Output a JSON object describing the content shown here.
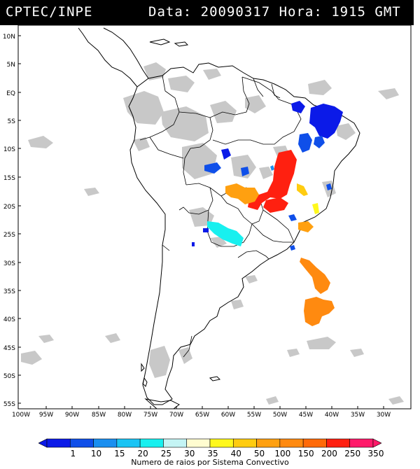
{
  "header": {
    "agency": "CPTEC/INPE",
    "datetime": "Data: 20090317 Hora: 1915 GMT"
  },
  "map": {
    "lat_labels": [
      "10N",
      "5N",
      "EQ",
      "5S",
      "10S",
      "15S",
      "20S",
      "25S",
      "30S",
      "35S",
      "40S",
      "45S",
      "50S",
      "55S"
    ],
    "lon_labels": [
      "100W",
      "95W",
      "90W",
      "85W",
      "80W",
      "75W",
      "70W",
      "65W",
      "60W",
      "55W",
      "50W",
      "45W",
      "40W",
      "35W",
      "30W"
    ],
    "colors": {
      "land_fill": "#ffffff",
      "border": "#000000",
      "cloud": "#c8c8c8"
    }
  },
  "legend": {
    "labels": [
      "1",
      "10",
      "15",
      "20",
      "25",
      "30",
      "35",
      "40",
      "50",
      "100",
      "150",
      "200",
      "250",
      "350"
    ],
    "colors": [
      "#0b1ae8",
      "#0f4fe9",
      "#1a8ff0",
      "#1ac4f4",
      "#18f0ef",
      "#c4f4f4",
      "#fffcd0",
      "#fff81c",
      "#ffcc10",
      "#ffa010",
      "#ff8a10",
      "#ff6a08",
      "#ff2010",
      "#ff1a6a"
    ],
    "title": "Numero de raios por Sistema Convectivo"
  }
}
